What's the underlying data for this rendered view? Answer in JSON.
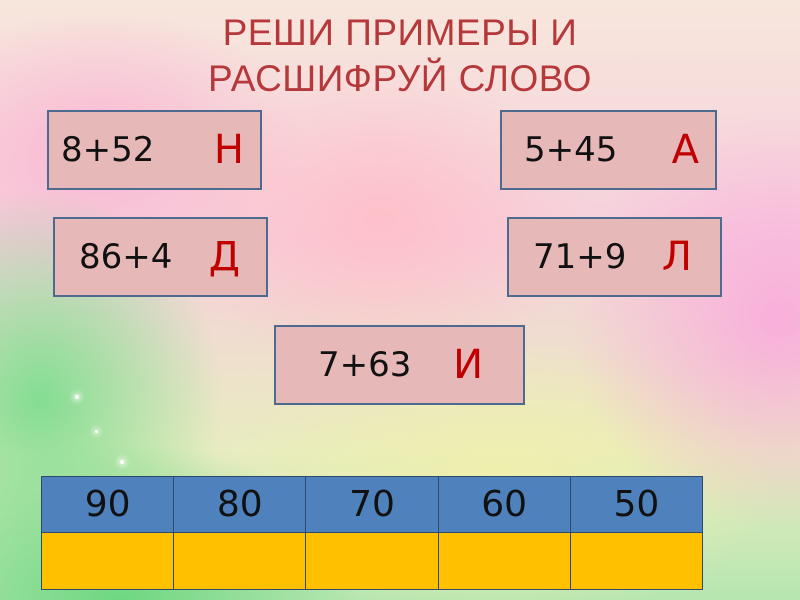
{
  "title": {
    "line1": "РЕШИ ПРИМЕРЫ И",
    "line2": "РАСШИФРУЙ СЛОВО"
  },
  "exercises": [
    {
      "expression": "8+52",
      "letter": "Н"
    },
    {
      "expression": "5+45",
      "letter": "А"
    },
    {
      "expression": "86+4",
      "letter": "Д"
    },
    {
      "expression": "71+9",
      "letter": "Л"
    },
    {
      "expression": "7+63",
      "letter": "И"
    }
  ],
  "answer_table": {
    "numbers": [
      "90",
      "80",
      "70",
      "60",
      "50"
    ],
    "letters": [
      "",
      "",
      "",
      "",
      ""
    ]
  },
  "colors": {
    "title": "#b5383a",
    "card": "#e6b8b7",
    "letter": "#c00000",
    "header": "#4f81bd",
    "answer_cell": "#ffc000"
  }
}
